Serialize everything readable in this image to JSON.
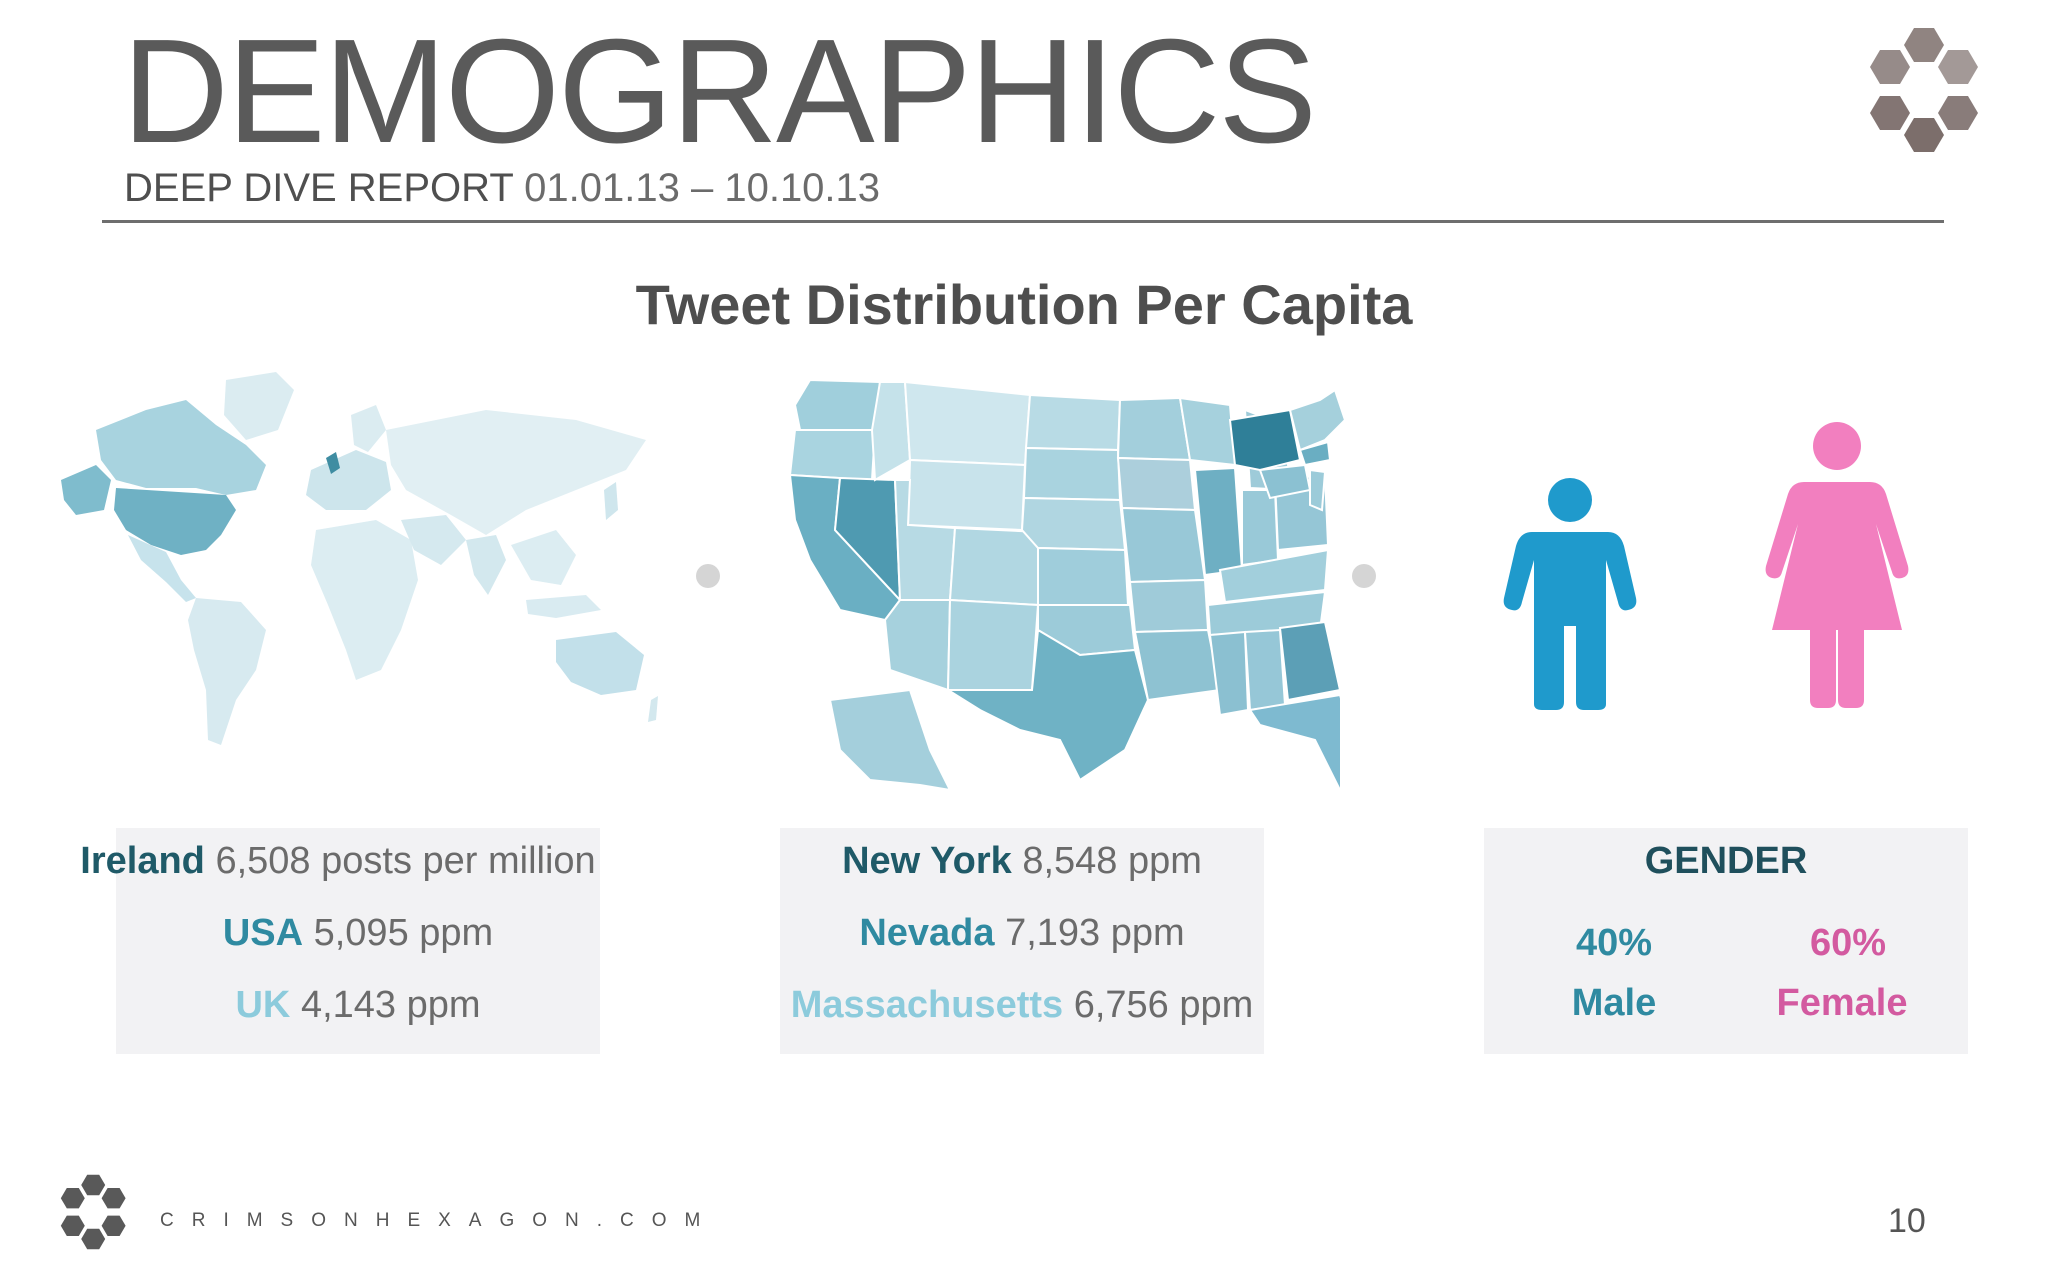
{
  "header": {
    "title": "DEMOGRAPHICS",
    "subtitle_label": "DEEP DIVE REPORT",
    "subtitle_date": "01.01.13 – 10.10.13"
  },
  "chart_title": "Tweet Distribution Per Capita",
  "colors": {
    "dark_teal": "#1f5a68",
    "mid_teal": "#2f8aa1",
    "light_teal": "#8ccbdc",
    "male": "#1f9acc",
    "female": "#f27fbf",
    "logo": "#7c6e6b"
  },
  "world_panel": {
    "rows": [
      {
        "name": "Ireland",
        "value": "6,508 posts per million",
        "color": "#1f5a68"
      },
      {
        "name": "USA",
        "value": "5,095  ppm",
        "color": "#2f8aa1"
      },
      {
        "name": "UK",
        "value": "4,143 ppm",
        "color": "#8ccbdc"
      }
    ]
  },
  "usa_panel": {
    "rows": [
      {
        "name": "New York",
        "value": "8,548 ppm",
        "color": "#1f5a68"
      },
      {
        "name": "Nevada",
        "value": "7,193 ppm",
        "color": "#2f8aa1"
      },
      {
        "name": "Massachusetts",
        "value": "6,756 ppm",
        "color": "#8ccbdc"
      }
    ]
  },
  "gender_panel": {
    "title": "GENDER",
    "male_pct": "40%",
    "male_label": "Male",
    "female_pct": "60%",
    "female_label": "Female"
  },
  "footer": {
    "site": "CRIMSONHEXAGON.COM",
    "page_number": "10"
  },
  "icons": [
    "hexagon-logo-icon",
    "world-map-icon",
    "usa-map-icon",
    "male-figure-icon",
    "female-figure-icon"
  ]
}
